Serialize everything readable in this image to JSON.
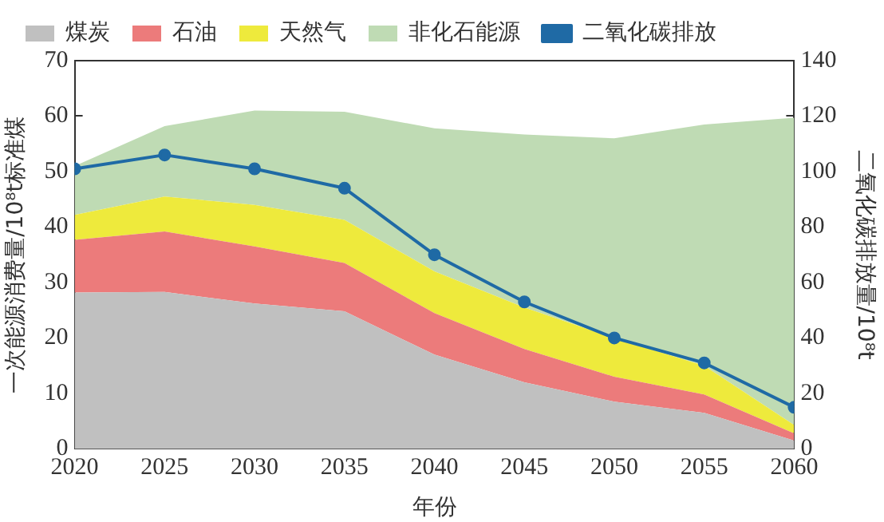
{
  "chart_data": {
    "type": "area",
    "stacked": true,
    "xlabel": "年份",
    "ylabel": "一次能源消费量/10⁸t标准煤",
    "y2label": "二氧化碳排放量/10⁸t",
    "x": [
      2020,
      2025,
      2030,
      2035,
      2040,
      2045,
      2050,
      2055,
      2060
    ],
    "xlim": [
      2020,
      2060
    ],
    "xticks": [
      2020,
      2025,
      2030,
      2035,
      2040,
      2045,
      2050,
      2055,
      2060
    ],
    "ylim": [
      0,
      70
    ],
    "yticks": [
      0,
      10,
      20,
      30,
      40,
      50,
      60,
      70
    ],
    "y2lim": [
      0,
      140
    ],
    "y2ticks": [
      0,
      20,
      40,
      60,
      80,
      100,
      120,
      140
    ],
    "grid": false,
    "legend": "top",
    "series": [
      {
        "name": "煤炭",
        "color": "#c0c0c0",
        "values": [
          28.2,
          28.3,
          26.2,
          24.8,
          17,
          12,
          8.5,
          6.5,
          1.5
        ]
      },
      {
        "name": "石油",
        "color": "#ec7b7b",
        "values": [
          9.5,
          10.9,
          10.3,
          8.7,
          7.5,
          6,
          4.5,
          3.3,
          1.3
        ]
      },
      {
        "name": "天然气",
        "color": "#eeea3c",
        "values": [
          4.5,
          6.3,
          7.5,
          7.8,
          7.5,
          7.5,
          7,
          5.2,
          1.5
        ]
      },
      {
        "name": "非化石能源",
        "color": "#bfdbb4",
        "values": [
          8.8,
          12.7,
          17,
          19.5,
          25.8,
          31.2,
          36,
          43.5,
          55.4
        ]
      },
      {
        "name": "二氧化碳排放",
        "color": "#1f6aa5",
        "type": "line",
        "axis": "y2",
        "marker": "circle",
        "values": [
          101,
          106,
          101,
          94,
          70,
          53,
          40,
          31,
          15
        ]
      }
    ]
  }
}
